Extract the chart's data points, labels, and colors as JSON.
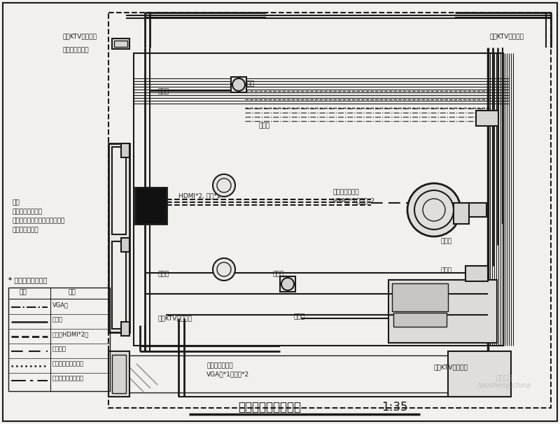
{
  "bg_color": "#f2f0ec",
  "line_color": "#1a1a1a",
  "title": "设备线路布置分析图",
  "scale": "1:35",
  "legend_title": "音筱线图示注解：",
  "note_text": "注：\n此图为虚拟布线，\n实际布线需根据现场情况为准。\n出线预留两米。"
}
